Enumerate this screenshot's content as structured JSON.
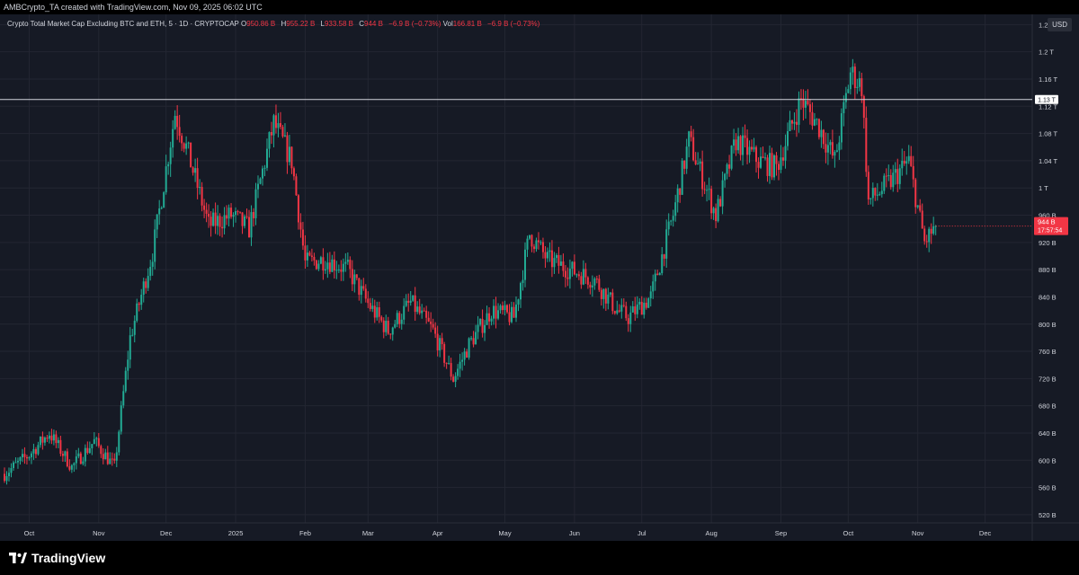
{
  "header": {
    "credit": "AMBCrypto_TA created with TradingView.com, Nov 09, 2025 06:02 UTC"
  },
  "legend": {
    "symbol": "Crypto Total Market Cap Excluding BTC and ETH, 5 · 1D · CRYPTOCAP",
    "o_label": "O",
    "o_value": "950.86 B",
    "h_label": "H",
    "h_value": "955.22 B",
    "l_label": "L",
    "l_value": "933.58 B",
    "c_label": "C",
    "c_value": "944 B",
    "c_change": "−6.9 B (−0.73%)",
    "vol_label": "Vol",
    "vol_value": "166.81 B",
    "vol_change": "−6.9 B (−0.73%)"
  },
  "currency_label": "USD",
  "brand": "TradingView",
  "colors": {
    "background": "#161a25",
    "grid": "#232632",
    "up": "#22ab94",
    "down": "#f23645",
    "level_line": "#d1d4dc",
    "axis_text": "#d1d4dc"
  },
  "chart_data": {
    "type": "candlestick",
    "x_axis_labels": [
      "Oct",
      "Nov",
      "Dec",
      "2025",
      "Feb",
      "Mar",
      "Apr",
      "May",
      "Jun",
      "Jul",
      "Aug",
      "Sep",
      "Oct",
      "Nov",
      "Dec"
    ],
    "y_axis_labels": [
      "520 B",
      "560 B",
      "600 B",
      "640 B",
      "680 B",
      "720 B",
      "760 B",
      "800 B",
      "840 B",
      "880 B",
      "920 B",
      "960 B",
      "1 T",
      "1.04 T",
      "1.08 T",
      "1.12 T",
      "1.16 T",
      "1.2 T",
      "1.24 T"
    ],
    "y_range_billions": [
      508,
      1255
    ],
    "horizontal_level": {
      "value_billions": 1130,
      "label": "1.13 T"
    },
    "last_price": {
      "value_billions": 944,
      "label": "944 B",
      "countdown": "17:57:54"
    },
    "approx_close_path_billions": [
      {
        "date": "2024-09-20",
        "value": 580
      },
      {
        "date": "2024-10-01",
        "value": 608
      },
      {
        "date": "2024-10-10",
        "value": 640
      },
      {
        "date": "2024-10-20",
        "value": 590
      },
      {
        "date": "2024-10-30",
        "value": 628
      },
      {
        "date": "2024-11-08",
        "value": 590
      },
      {
        "date": "2024-11-15",
        "value": 780
      },
      {
        "date": "2024-11-25",
        "value": 905
      },
      {
        "date": "2024-12-05",
        "value": 1110
      },
      {
        "date": "2024-12-10",
        "value": 1060
      },
      {
        "date": "2024-12-20",
        "value": 945
      },
      {
        "date": "2024-12-30",
        "value": 960
      },
      {
        "date": "2025-01-07",
        "value": 940
      },
      {
        "date": "2025-01-18",
        "value": 1095
      },
      {
        "date": "2025-01-26",
        "value": 1040
      },
      {
        "date": "2025-02-01",
        "value": 890
      },
      {
        "date": "2025-02-10",
        "value": 895
      },
      {
        "date": "2025-02-20",
        "value": 880
      },
      {
        "date": "2025-03-01",
        "value": 830
      },
      {
        "date": "2025-03-10",
        "value": 790
      },
      {
        "date": "2025-03-20",
        "value": 832
      },
      {
        "date": "2025-03-30",
        "value": 790
      },
      {
        "date": "2025-04-08",
        "value": 720
      },
      {
        "date": "2025-04-15",
        "value": 770
      },
      {
        "date": "2025-04-25",
        "value": 820
      },
      {
        "date": "2025-05-05",
        "value": 810
      },
      {
        "date": "2025-05-12",
        "value": 932
      },
      {
        "date": "2025-05-20",
        "value": 895
      },
      {
        "date": "2025-05-30",
        "value": 880
      },
      {
        "date": "2025-06-10",
        "value": 865
      },
      {
        "date": "2025-06-20",
        "value": 820
      },
      {
        "date": "2025-06-25",
        "value": 810
      },
      {
        "date": "2025-07-05",
        "value": 840
      },
      {
        "date": "2025-07-15",
        "value": 960
      },
      {
        "date": "2025-07-22",
        "value": 1070
      },
      {
        "date": "2025-08-03",
        "value": 960
      },
      {
        "date": "2025-08-12",
        "value": 1070
      },
      {
        "date": "2025-08-22",
        "value": 1040
      },
      {
        "date": "2025-08-30",
        "value": 1030
      },
      {
        "date": "2025-09-10",
        "value": 1130
      },
      {
        "date": "2025-09-18",
        "value": 1090
      },
      {
        "date": "2025-09-25",
        "value": 1040
      },
      {
        "date": "2025-10-02",
        "value": 1170
      },
      {
        "date": "2025-10-07",
        "value": 1150
      },
      {
        "date": "2025-10-10",
        "value": 980
      },
      {
        "date": "2025-10-20",
        "value": 1010
      },
      {
        "date": "2025-10-28",
        "value": 1040
      },
      {
        "date": "2025-11-04",
        "value": 920
      },
      {
        "date": "2025-11-09",
        "value": 944
      }
    ]
  }
}
